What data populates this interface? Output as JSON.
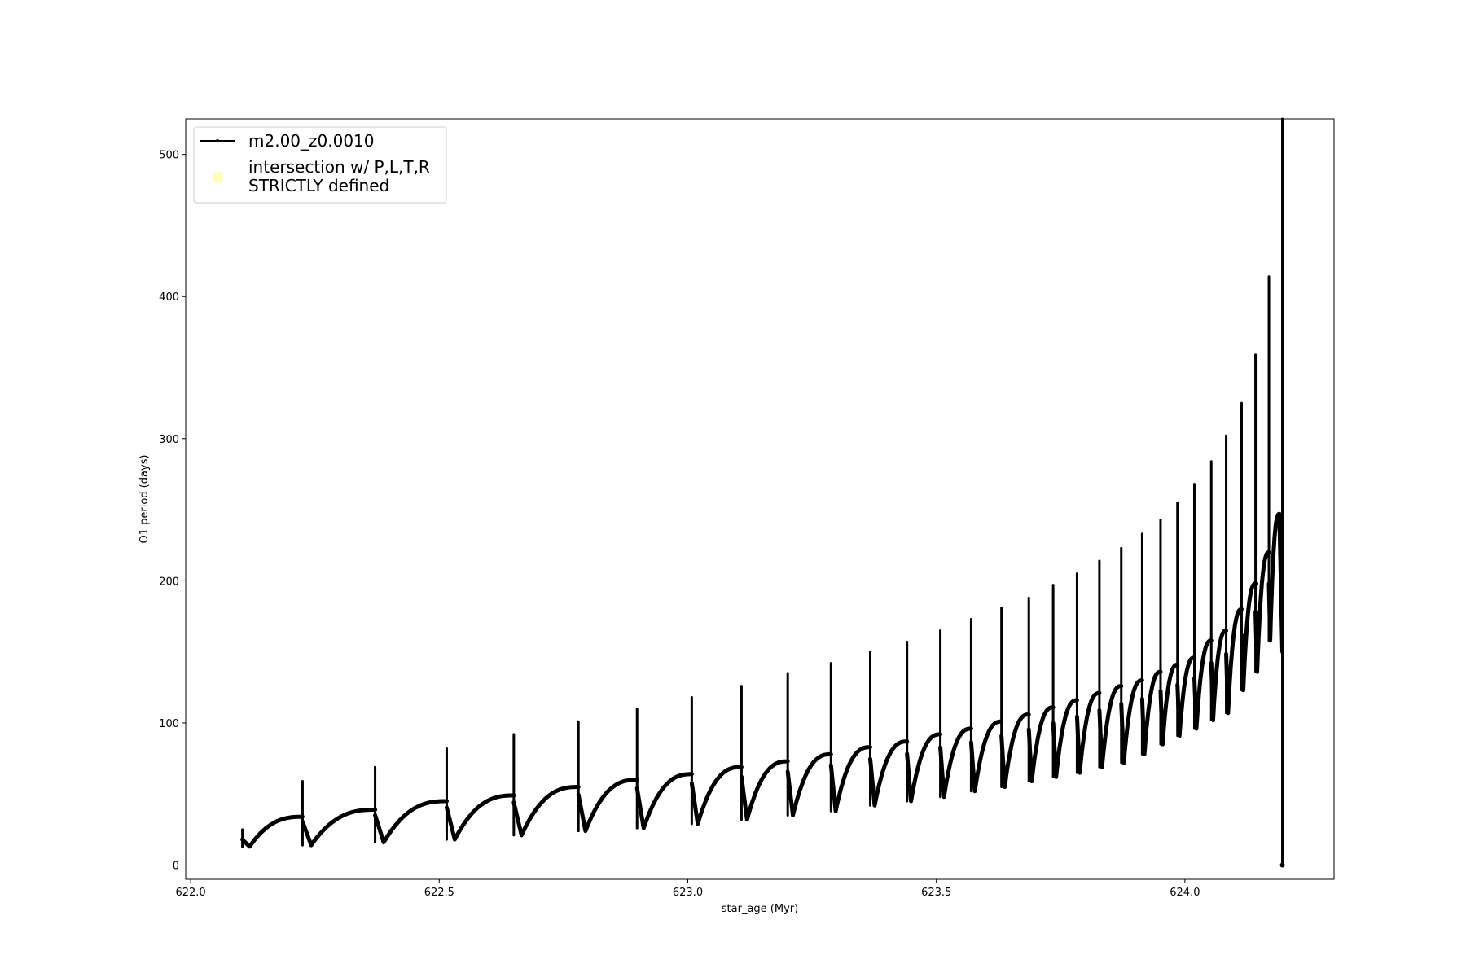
{
  "chart_data": {
    "type": "line",
    "title": "",
    "xlabel": "star_age (Myr)",
    "ylabel": "O1 period (days)",
    "xlim": [
      621.99,
      624.3
    ],
    "ylim": [
      -10,
      525
    ],
    "xticks": [
      "622.0",
      "622.5",
      "623.0",
      "623.5",
      "624.0"
    ],
    "xtick_values": [
      622.0,
      622.5,
      623.0,
      623.5,
      624.0
    ],
    "yticks": [
      "0",
      "100",
      "200",
      "300",
      "400",
      "500"
    ],
    "ytick_values": [
      0,
      100,
      200,
      300,
      400,
      500
    ],
    "grid": false,
    "legend": {
      "placement": "upper-left",
      "entries": [
        {
          "label": "m2.00_z0.0010",
          "marker": "line-with-dots",
          "color": "#000000"
        },
        {
          "label_line1": "intersection w/ P,L,T,R",
          "label_line2": "STRICTLY defined",
          "marker": "circle",
          "color": "#ffffa8"
        }
      ]
    },
    "series": [
      {
        "name": "m2.00_z0.0010",
        "color": "#000000",
        "cycle_columns": [
          "spike_age",
          "value_before_spike",
          "spike_peak",
          "minimum_after_spike"
        ],
        "cycles": [
          [
            622.104,
            20,
            25,
            13
          ],
          [
            622.225,
            34,
            59,
            14
          ],
          [
            622.371,
            39,
            69,
            16
          ],
          [
            622.515,
            45,
            82,
            18
          ],
          [
            622.65,
            49,
            92,
            21
          ],
          [
            622.78,
            55,
            101,
            24
          ],
          [
            622.898,
            60,
            110,
            26
          ],
          [
            623.008,
            64,
            118,
            29
          ],
          [
            623.108,
            69,
            126,
            32
          ],
          [
            623.201,
            73,
            135,
            35
          ],
          [
            623.288,
            78,
            142,
            38
          ],
          [
            623.367,
            83,
            150,
            42
          ],
          [
            623.441,
            87,
            157,
            45
          ],
          [
            623.508,
            92,
            165,
            48
          ],
          [
            623.57,
            96,
            173,
            52
          ],
          [
            623.631,
            101,
            181,
            55
          ],
          [
            623.686,
            106,
            188,
            59
          ],
          [
            623.735,
            111,
            197,
            62
          ],
          [
            623.783,
            116,
            205,
            65
          ],
          [
            623.828,
            121,
            214,
            69
          ],
          [
            623.872,
            126,
            223,
            72
          ],
          [
            623.914,
            130,
            233,
            78
          ],
          [
            623.951,
            136,
            243,
            85
          ],
          [
            623.985,
            141,
            255,
            91
          ],
          [
            624.019,
            146,
            268,
            96
          ],
          [
            624.053,
            158,
            284,
            102
          ],
          [
            624.083,
            165,
            302,
            107
          ],
          [
            624.114,
            180,
            325,
            123
          ],
          [
            624.142,
            198,
            359,
            136
          ],
          [
            624.169,
            220,
            414,
            158
          ]
        ],
        "final_peak": [
          624.19,
          247
        ],
        "final_drop": {
          "age": 624.196,
          "from": 0,
          "to": 525
        }
      }
    ]
  }
}
